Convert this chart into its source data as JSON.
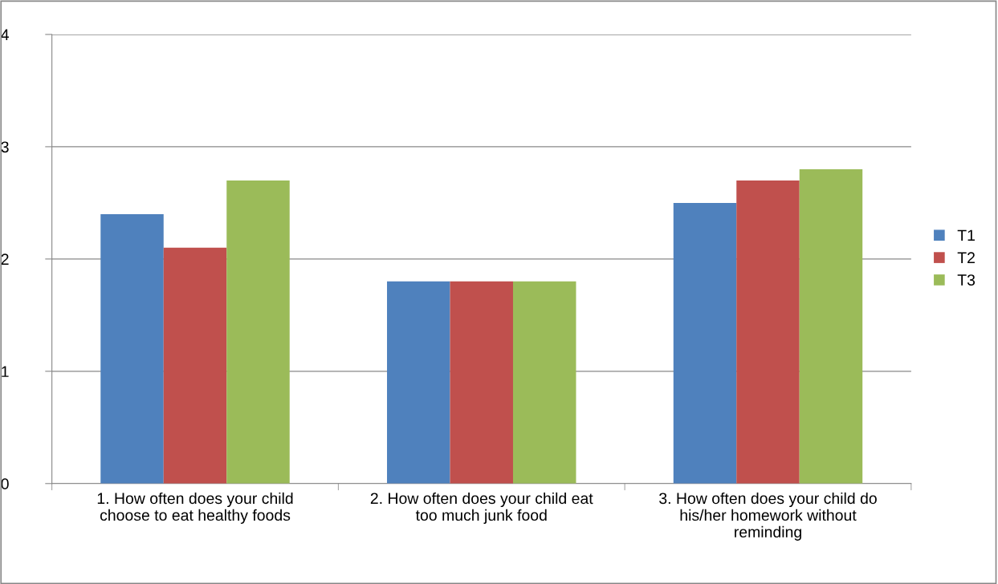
{
  "chart_data": {
    "type": "bar",
    "categories": [
      "1. How often does your child choose to eat healthy foods",
      "2. How often does your child eat too much junk food",
      "3. How often does your child do his/her homework without reminding"
    ],
    "series": [
      {
        "name": "T1",
        "color": "#4f81bd",
        "values": [
          2.4,
          1.8,
          2.5
        ]
      },
      {
        "name": "T2",
        "color": "#c0504d",
        "values": [
          2.1,
          1.8,
          2.7
        ]
      },
      {
        "name": "T3",
        "color": "#9bbb59",
        "values": [
          2.7,
          1.8,
          2.8
        ]
      }
    ],
    "ylim": [
      0,
      4
    ],
    "yticks": [
      0,
      1,
      2,
      3,
      4
    ],
    "grid": "y",
    "legend": "right"
  }
}
